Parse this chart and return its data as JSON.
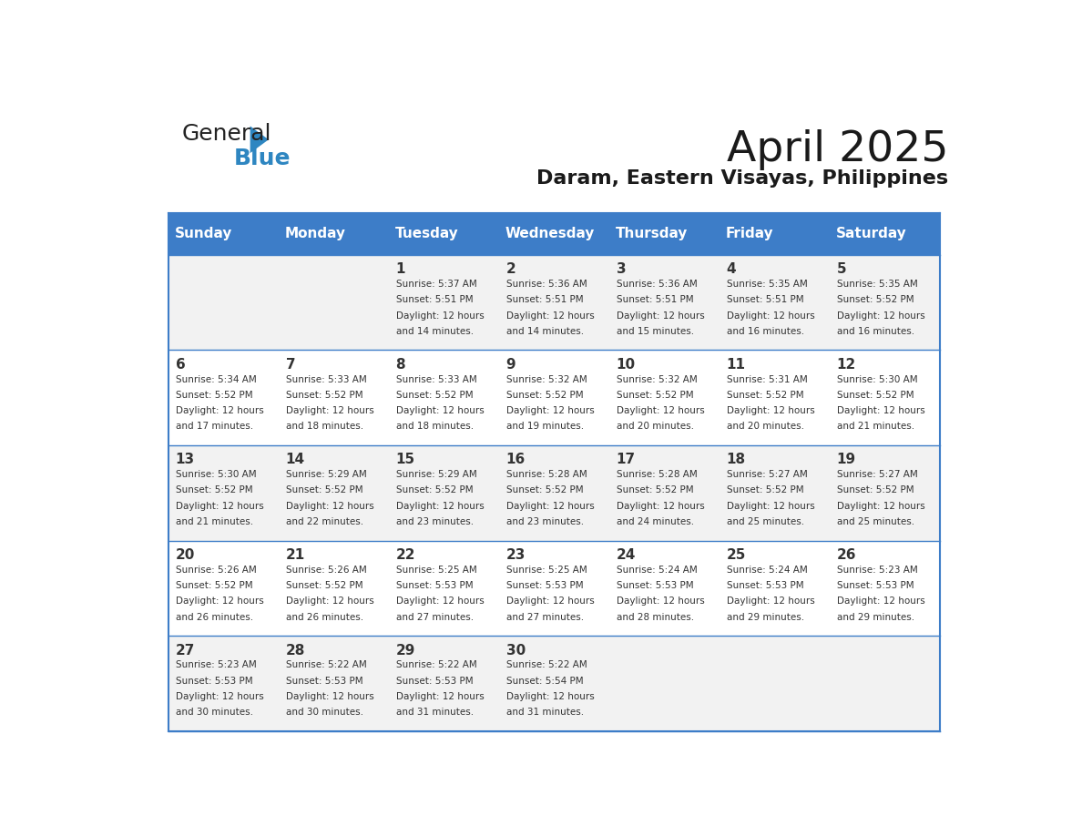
{
  "title": "April 2025",
  "subtitle": "Daram, Eastern Visayas, Philippines",
  "days_of_week": [
    "Sunday",
    "Monday",
    "Tuesday",
    "Wednesday",
    "Thursday",
    "Friday",
    "Saturday"
  ],
  "header_bg": "#3D7DC8",
  "header_text_color": "#FFFFFF",
  "row_bg_odd": "#F2F2F2",
  "row_bg_even": "#FFFFFF",
  "border_color": "#3D7DC8",
  "text_color": "#333333",
  "cell_data": [
    [
      null,
      null,
      {
        "day": 1,
        "sunrise": "5:37 AM",
        "sunset": "5:51 PM",
        "daylight": "12 hours and 14 minutes."
      },
      {
        "day": 2,
        "sunrise": "5:36 AM",
        "sunset": "5:51 PM",
        "daylight": "12 hours and 14 minutes."
      },
      {
        "day": 3,
        "sunrise": "5:36 AM",
        "sunset": "5:51 PM",
        "daylight": "12 hours and 15 minutes."
      },
      {
        "day": 4,
        "sunrise": "5:35 AM",
        "sunset": "5:51 PM",
        "daylight": "12 hours and 16 minutes."
      },
      {
        "day": 5,
        "sunrise": "5:35 AM",
        "sunset": "5:52 PM",
        "daylight": "12 hours and 16 minutes."
      }
    ],
    [
      {
        "day": 6,
        "sunrise": "5:34 AM",
        "sunset": "5:52 PM",
        "daylight": "12 hours and 17 minutes."
      },
      {
        "day": 7,
        "sunrise": "5:33 AM",
        "sunset": "5:52 PM",
        "daylight": "12 hours and 18 minutes."
      },
      {
        "day": 8,
        "sunrise": "5:33 AM",
        "sunset": "5:52 PM",
        "daylight": "12 hours and 18 minutes."
      },
      {
        "day": 9,
        "sunrise": "5:32 AM",
        "sunset": "5:52 PM",
        "daylight": "12 hours and 19 minutes."
      },
      {
        "day": 10,
        "sunrise": "5:32 AM",
        "sunset": "5:52 PM",
        "daylight": "12 hours and 20 minutes."
      },
      {
        "day": 11,
        "sunrise": "5:31 AM",
        "sunset": "5:52 PM",
        "daylight": "12 hours and 20 minutes."
      },
      {
        "day": 12,
        "sunrise": "5:30 AM",
        "sunset": "5:52 PM",
        "daylight": "12 hours and 21 minutes."
      }
    ],
    [
      {
        "day": 13,
        "sunrise": "5:30 AM",
        "sunset": "5:52 PM",
        "daylight": "12 hours and 21 minutes."
      },
      {
        "day": 14,
        "sunrise": "5:29 AM",
        "sunset": "5:52 PM",
        "daylight": "12 hours and 22 minutes."
      },
      {
        "day": 15,
        "sunrise": "5:29 AM",
        "sunset": "5:52 PM",
        "daylight": "12 hours and 23 minutes."
      },
      {
        "day": 16,
        "sunrise": "5:28 AM",
        "sunset": "5:52 PM",
        "daylight": "12 hours and 23 minutes."
      },
      {
        "day": 17,
        "sunrise": "5:28 AM",
        "sunset": "5:52 PM",
        "daylight": "12 hours and 24 minutes."
      },
      {
        "day": 18,
        "sunrise": "5:27 AM",
        "sunset": "5:52 PM",
        "daylight": "12 hours and 25 minutes."
      },
      {
        "day": 19,
        "sunrise": "5:27 AM",
        "sunset": "5:52 PM",
        "daylight": "12 hours and 25 minutes."
      }
    ],
    [
      {
        "day": 20,
        "sunrise": "5:26 AM",
        "sunset": "5:52 PM",
        "daylight": "12 hours and 26 minutes."
      },
      {
        "day": 21,
        "sunrise": "5:26 AM",
        "sunset": "5:52 PM",
        "daylight": "12 hours and 26 minutes."
      },
      {
        "day": 22,
        "sunrise": "5:25 AM",
        "sunset": "5:53 PM",
        "daylight": "12 hours and 27 minutes."
      },
      {
        "day": 23,
        "sunrise": "5:25 AM",
        "sunset": "5:53 PM",
        "daylight": "12 hours and 27 minutes."
      },
      {
        "day": 24,
        "sunrise": "5:24 AM",
        "sunset": "5:53 PM",
        "daylight": "12 hours and 28 minutes."
      },
      {
        "day": 25,
        "sunrise": "5:24 AM",
        "sunset": "5:53 PM",
        "daylight": "12 hours and 29 minutes."
      },
      {
        "day": 26,
        "sunrise": "5:23 AM",
        "sunset": "5:53 PM",
        "daylight": "12 hours and 29 minutes."
      }
    ],
    [
      {
        "day": 27,
        "sunrise": "5:23 AM",
        "sunset": "5:53 PM",
        "daylight": "12 hours and 30 minutes."
      },
      {
        "day": 28,
        "sunrise": "5:22 AM",
        "sunset": "5:53 PM",
        "daylight": "12 hours and 30 minutes."
      },
      {
        "day": 29,
        "sunrise": "5:22 AM",
        "sunset": "5:53 PM",
        "daylight": "12 hours and 31 minutes."
      },
      {
        "day": 30,
        "sunrise": "5:22 AM",
        "sunset": "5:54 PM",
        "daylight": "12 hours and 31 minutes."
      },
      null,
      null,
      null
    ]
  ],
  "logo_text_general": "General",
  "logo_text_blue": "Blue",
  "logo_color_general": "#222222",
  "logo_color_blue": "#2E86C1",
  "logo_triangle_color": "#2E86C1"
}
